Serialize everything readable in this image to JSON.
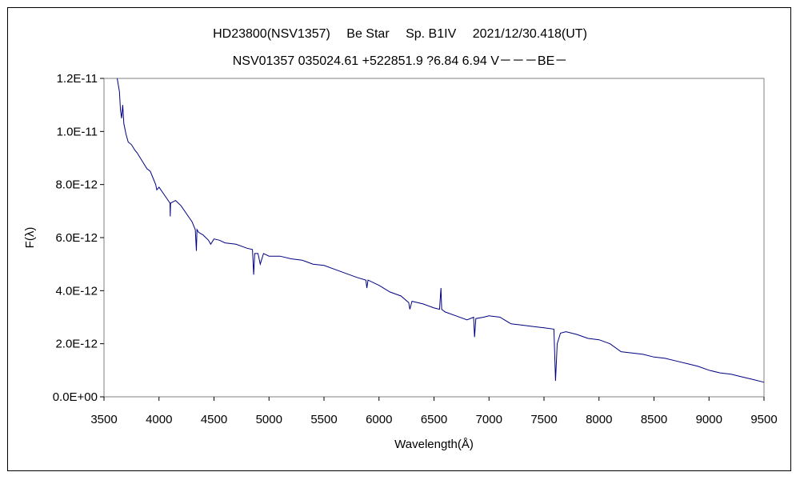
{
  "chart_data": {
    "type": "line",
    "title": "HD23800(NSV1357)　 Be Star　 Sp. B1IV　 2021/12/30.418(UT)",
    "subtitle": "NSV01357 035024.61 +522851.9 ?6.84 6.94 V－－－BE－",
    "xlabel": "Wavelength(Å)",
    "ylabel": "F(λ)",
    "xlim": [
      3500,
      9500
    ],
    "ylim": [
      0,
      1.2e-11
    ],
    "x_ticks": [
      3500,
      4000,
      4500,
      5000,
      5500,
      6000,
      6500,
      7000,
      7500,
      8000,
      8500,
      9000,
      9500
    ],
    "x_tick_labels": [
      "3500",
      "4000",
      "4500",
      "5000",
      "5500",
      "6000",
      "6500",
      "7000",
      "7500",
      "8000",
      "8500",
      "9000",
      "9500"
    ],
    "y_ticks": [
      0,
      2e-12,
      4e-12,
      6e-12,
      8e-12,
      1e-11,
      1.2e-11
    ],
    "y_tick_labels": [
      "0.0E+00",
      "2.0E-12",
      "4.0E-12",
      "6.0E-12",
      "8.0E-12",
      "1.0E-11",
      "1.2E-11"
    ],
    "grid": false,
    "legend": "none",
    "series": [
      {
        "color": "#000080",
        "x": [
          3620,
          3640,
          3650,
          3660,
          3670,
          3680,
          3700,
          3720,
          3750,
          3780,
          3800,
          3830,
          3860,
          3890,
          3920,
          3950,
          3970,
          3980,
          4000,
          4050,
          4100,
          4102,
          4105,
          4150,
          4200,
          4250,
          4300,
          4330,
          4340,
          4345,
          4360,
          4400,
          4450,
          4470,
          4500,
          4550,
          4600,
          4700,
          4800,
          4850,
          4861,
          4870,
          4900,
          4920,
          4950,
          5000,
          5100,
          5200,
          5300,
          5400,
          5500,
          5600,
          5700,
          5800,
          5880,
          5890,
          5900,
          6000,
          6100,
          6200,
          6270,
          6280,
          6300,
          6400,
          6500,
          6550,
          6563,
          6570,
          6600,
          6700,
          6800,
          6860,
          6869,
          6880,
          6950,
          7000,
          7100,
          7200,
          7300,
          7400,
          7500,
          7590,
          7605,
          7620,
          7650,
          7700,
          7800,
          7900,
          8000,
          8100,
          8200,
          8300,
          8400,
          8500,
          8600,
          8700,
          8800,
          8900,
          9000,
          9100,
          9200,
          9300,
          9400,
          9500
        ],
        "y": [
          1.2e-11,
          1.15e-11,
          1.08e-11,
          1.05e-11,
          1.1e-11,
          1.03e-11,
          9.9e-12,
          9.6e-12,
          9.5e-12,
          9.3e-12,
          9.2e-12,
          9e-12,
          8.8e-12,
          8.6e-12,
          8.5e-12,
          8.2e-12,
          8e-12,
          7.8e-12,
          7.9e-12,
          7.6e-12,
          7.3e-12,
          6.8e-12,
          7.3e-12,
          7.4e-12,
          7.2e-12,
          6.9e-12,
          6.6e-12,
          6.3e-12,
          5.5e-12,
          6.3e-12,
          6.2e-12,
          6.1e-12,
          5.9e-12,
          5.75e-12,
          5.95e-12,
          5.9e-12,
          5.8e-12,
          5.75e-12,
          5.6e-12,
          5.55e-12,
          4.6e-12,
          5.4e-12,
          5.4e-12,
          5e-12,
          5.4e-12,
          5.3e-12,
          5.3e-12,
          5.2e-12,
          5.15e-12,
          5e-12,
          4.95e-12,
          4.8e-12,
          4.65e-12,
          4.5e-12,
          4.4e-12,
          4.1e-12,
          4.4e-12,
          4.2e-12,
          3.95e-12,
          3.8e-12,
          3.55e-12,
          3.3e-12,
          3.6e-12,
          3.5e-12,
          3.35e-12,
          3.3e-12,
          4.1e-12,
          3.3e-12,
          3.2e-12,
          3.05e-12,
          2.9e-12,
          3e-12,
          2.25e-12,
          2.95e-12,
          3e-12,
          3.05e-12,
          3e-12,
          2.75e-12,
          2.7e-12,
          2.65e-12,
          2.6e-12,
          2.55e-12,
          6e-13,
          2e-12,
          2.4e-12,
          2.45e-12,
          2.35e-12,
          2.2e-12,
          2.15e-12,
          2e-12,
          1.7e-12,
          1.65e-12,
          1.6e-12,
          1.5e-12,
          1.45e-12,
          1.35e-12,
          1.25e-12,
          1.15e-12,
          1e-12,
          9e-13,
          8.5e-13,
          7.5e-13,
          6.5e-13,
          5.5e-13
        ]
      }
    ]
  }
}
